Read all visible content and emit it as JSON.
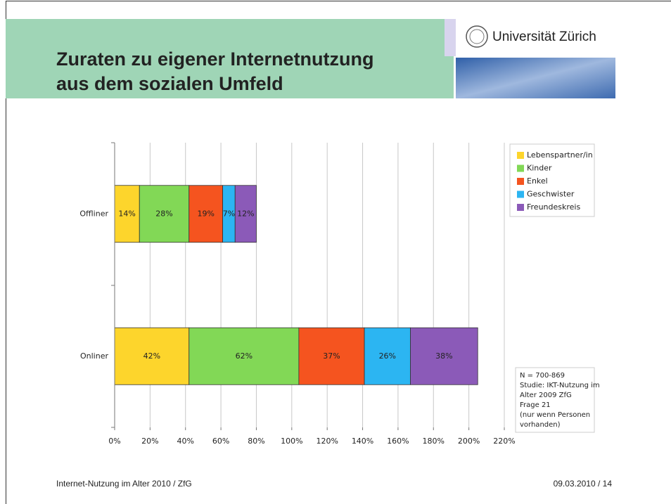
{
  "header": {
    "title_lines": [
      "Zuraten zu eigener Internetnutzung",
      "aus dem sozialen Umfeld"
    ],
    "logo": "Universität Zürich"
  },
  "chart_data": {
    "type": "bar",
    "orientation": "horizontal",
    "stacked": true,
    "categories": [
      "Offliner",
      "Onliner"
    ],
    "series": [
      {
        "name": "Lebenspartner/in",
        "color": "#fdd52c",
        "values": [
          14,
          42
        ],
        "value_labels": [
          "14%",
          "42%"
        ]
      },
      {
        "name": "Kinder",
        "color": "#82d856",
        "values": [
          28,
          62
        ],
        "value_labels": [
          "28%",
          "62%"
        ]
      },
      {
        "name": "Enkel",
        "color": "#f5541f",
        "values": [
          19,
          37
        ],
        "value_labels": [
          "19%",
          "37%"
        ]
      },
      {
        "name": "Geschwister",
        "color": "#2cb5f2",
        "values": [
          7,
          26
        ],
        "value_labels": [
          "7%",
          "26%"
        ]
      },
      {
        "name": "Freundeskreis",
        "color": "#8b5ab8",
        "values": [
          12,
          38
        ],
        "value_labels": [
          "12%",
          "38%"
        ]
      }
    ],
    "xlim": [
      0,
      220
    ],
    "xticks": [
      {
        "value": 0,
        "label": "0%"
      },
      {
        "value": 20,
        "label": "20%"
      },
      {
        "value": 40,
        "label": "40%"
      },
      {
        "value": 60,
        "label": "60%"
      },
      {
        "value": 80,
        "label": "80%"
      },
      {
        "value": 100,
        "label": "100%"
      },
      {
        "value": 120,
        "label": "120%"
      },
      {
        "value": 140,
        "label": "140%"
      },
      {
        "value": 160,
        "label": "160%"
      },
      {
        "value": 180,
        "label": "180%"
      },
      {
        "value": 200,
        "label": "200%"
      },
      {
        "value": 220,
        "label": "220%"
      }
    ],
    "grid": true,
    "legend": "right"
  },
  "note": [
    "N = 700-869",
    "Studie: IKT-Nutzung im",
    "Alter 2009 ZfG",
    "Frage 21",
    "(nur wenn Personen",
    "vorhanden)"
  ],
  "footer": {
    "left": "Internet-Nutzung im Alter 2010 / ZfG",
    "right": "09.03.2010  /  14"
  }
}
